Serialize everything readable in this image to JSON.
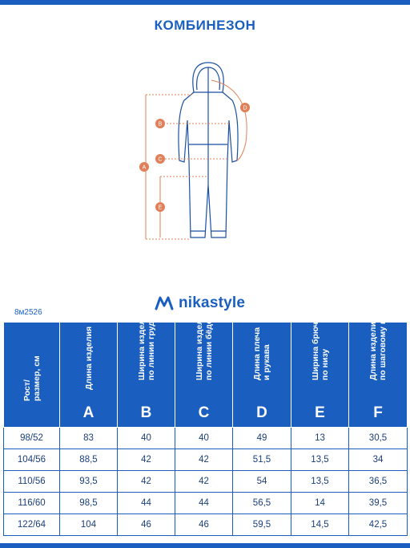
{
  "title": "КОМБИНЕЗОН",
  "diagram": {
    "labels": [
      "A",
      "B",
      "C",
      "D",
      "E"
    ]
  },
  "logo": {
    "text": "nikastyle"
  },
  "article": "8м2526",
  "table": {
    "headers": [
      {
        "label": "Рост/\nразмер, см",
        "letter": ""
      },
      {
        "label": "Длина изделия",
        "letter": "A"
      },
      {
        "label": "Ширина изделия\nпо линии груди",
        "letter": "B"
      },
      {
        "label": "Ширина изделия\nпо линии бёдер",
        "letter": "C"
      },
      {
        "label": "Длина плеча\nи рукава",
        "letter": "D"
      },
      {
        "label": "Ширина брючины\nпо низу",
        "letter": "E"
      },
      {
        "label": "Длина изделия\nпо шаговому шву",
        "letter": "F"
      }
    ],
    "rows": [
      [
        "98/52",
        "83",
        "40",
        "40",
        "49",
        "13",
        "30,5"
      ],
      [
        "104/56",
        "88,5",
        "42",
        "42",
        "51,5",
        "13,5",
        "34"
      ],
      [
        "110/56",
        "93,5",
        "42",
        "42",
        "54",
        "13,5",
        "36,5"
      ],
      [
        "116/60",
        "98,5",
        "44",
        "44",
        "56,5",
        "14",
        "39,5"
      ],
      [
        "122/64",
        "104",
        "46",
        "46",
        "59,5",
        "14,5",
        "42,5"
      ]
    ]
  },
  "colors": {
    "brand": "#1a5fc0",
    "measure": "#e0805a"
  }
}
